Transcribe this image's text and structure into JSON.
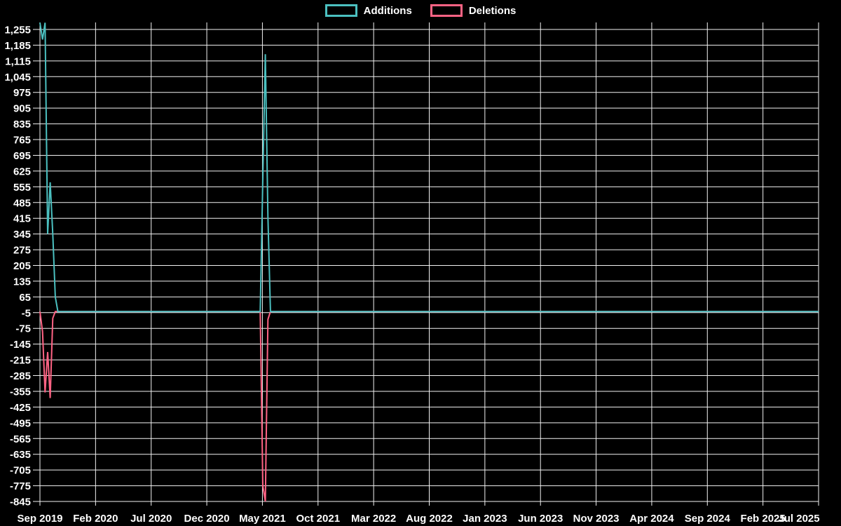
{
  "legend": {
    "items": [
      {
        "label": "Additions",
        "color": "#4bc0c0"
      },
      {
        "label": "Deletions",
        "color": "#ff6384"
      }
    ]
  },
  "chart_data": {
    "type": "line",
    "title": "",
    "xlabel": "",
    "ylabel": "",
    "x_unit": "weeks from Sep 2019 to Jul 2025",
    "x_tick_labels": [
      "Sep 2019",
      "Feb 2020",
      "Jul 2020",
      "Dec 2020",
      "May 2021",
      "Oct 2021",
      "Mar 2022",
      "Aug 2022",
      "Jan 2023",
      "Jun 2023",
      "Nov 2023",
      "Apr 2024",
      "Sep 2024",
      "Feb 2025",
      "Jul 2025"
    ],
    "y_tick_labels": [
      "1,255",
      "1,185",
      "1,115",
      "1,045",
      "975",
      "905",
      "835",
      "765",
      "695",
      "625",
      "555",
      "485",
      "415",
      "345",
      "275",
      "205",
      "135",
      "65",
      "-5",
      "-75",
      "-145",
      "-215",
      "-285",
      "-355",
      "-425",
      "-495",
      "-565",
      "-635",
      "-705",
      "-775",
      "-845"
    ],
    "y_tick_step": 70,
    "ylim": [
      -845,
      1286
    ],
    "xlim_weeks": [
      0,
      304
    ],
    "grid": true,
    "legend_position": "top-center",
    "background_color": "#000000",
    "grid_color": "#f2f2f2",
    "tick_text_color": "#ffffff",
    "series": [
      {
        "name": "Additions",
        "color": "#4bc0c0",
        "points": [
          [
            0,
            1285
          ],
          [
            1,
            1210
          ],
          [
            2,
            1285
          ],
          [
            3,
            345
          ],
          [
            4,
            575
          ],
          [
            5,
            345
          ],
          [
            6,
            65
          ],
          [
            7,
            0
          ],
          [
            86,
            0
          ],
          [
            87,
            590
          ],
          [
            88,
            1145
          ],
          [
            89,
            420
          ],
          [
            90,
            0
          ],
          [
            304,
            0
          ]
        ]
      },
      {
        "name": "Deletions",
        "color": "#ff6384",
        "points": [
          [
            0,
            0
          ],
          [
            1,
            -90
          ],
          [
            2,
            -360
          ],
          [
            3,
            -180
          ],
          [
            4,
            -385
          ],
          [
            5,
            -30
          ],
          [
            6,
            0
          ],
          [
            86,
            0
          ],
          [
            87,
            -775
          ],
          [
            88,
            -845
          ],
          [
            89,
            -35
          ],
          [
            90,
            0
          ],
          [
            304,
            0
          ]
        ]
      }
    ]
  }
}
